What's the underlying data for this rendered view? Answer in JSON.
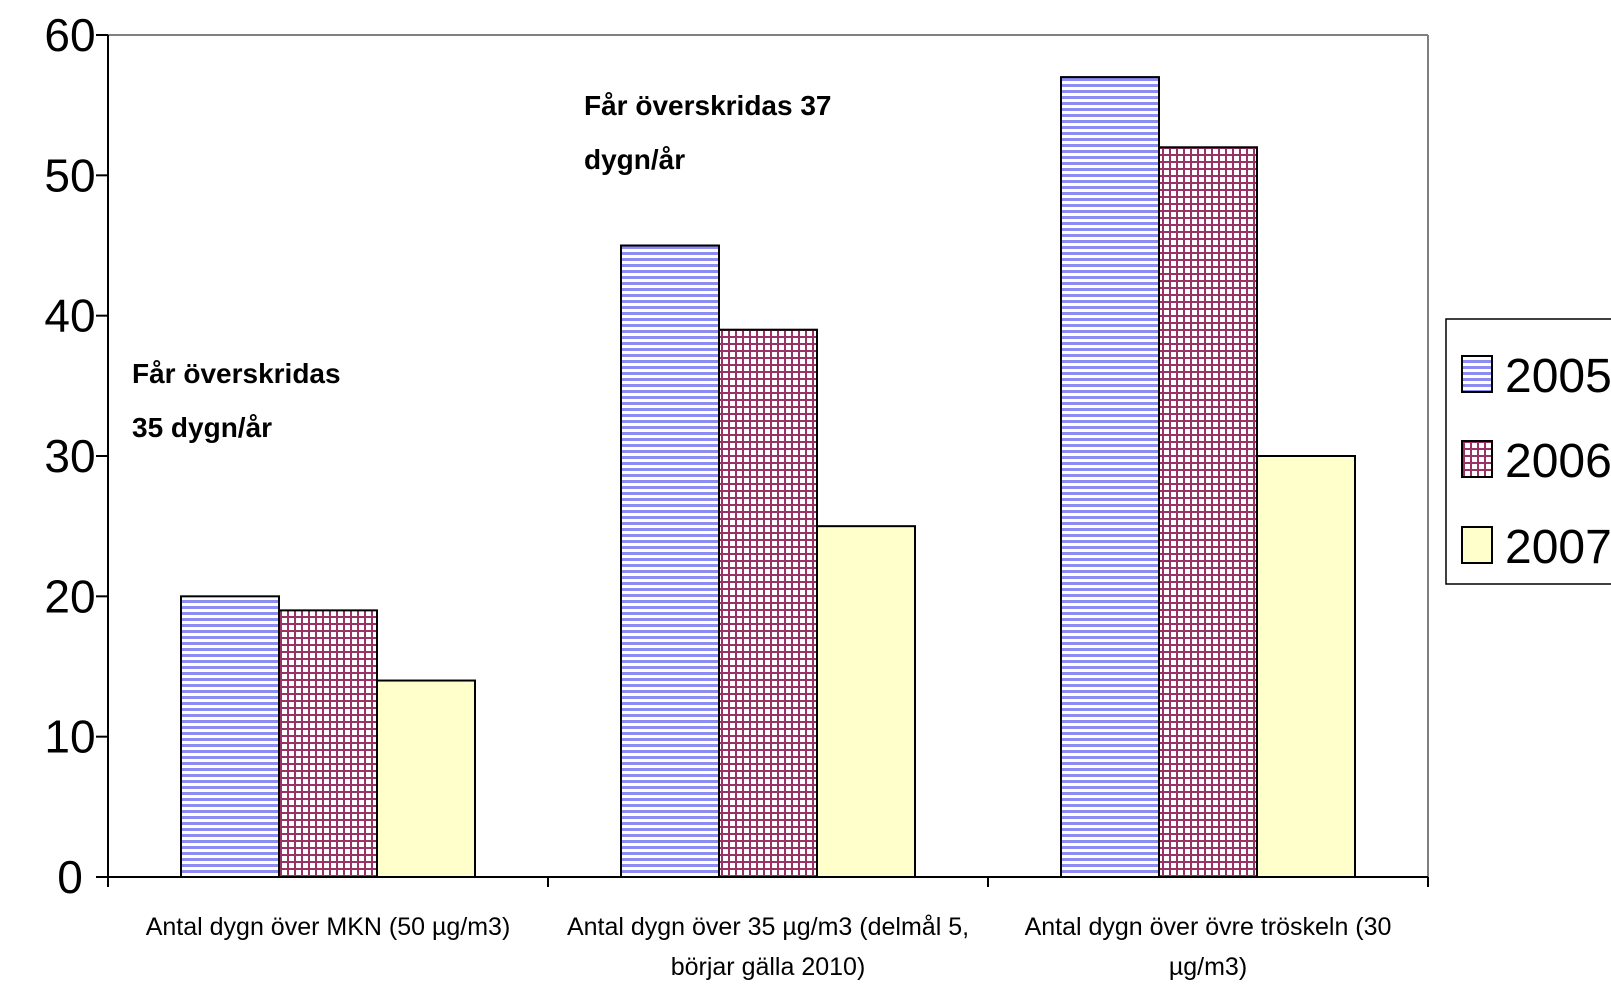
{
  "chart_data": {
    "type": "bar",
    "categories": [
      [
        "Antal dygn över MKN (50 µg/m3)"
      ],
      [
        "Antal dygn över 35 µg/m3 (delmål 5,",
        "börjar gälla 2010)"
      ],
      [
        "Antal dygn över övre tröskeln (30",
        "µg/m3)"
      ]
    ],
    "series": [
      {
        "name": "2005",
        "values": [
          20,
          45,
          57
        ],
        "color": "#9999ff",
        "pattern": "horizontal-stripes"
      },
      {
        "name": "2006",
        "values": [
          19,
          39,
          52
        ],
        "color": "#993366",
        "pattern": "grid"
      },
      {
        "name": "2007",
        "values": [
          14,
          25,
          30
        ],
        "color": "#ffffcc",
        "pattern": "solid"
      }
    ],
    "ylim": [
      0,
      60
    ],
    "yticks": [
      0,
      10,
      20,
      30,
      40,
      50,
      60
    ],
    "grid": false,
    "legend_position": "right",
    "annotations": [
      {
        "lines": [
          "Får överskridas",
          "35 dygn/år"
        ]
      },
      {
        "lines": [
          "Får överskridas 37",
          "dygn/år"
        ]
      }
    ]
  }
}
